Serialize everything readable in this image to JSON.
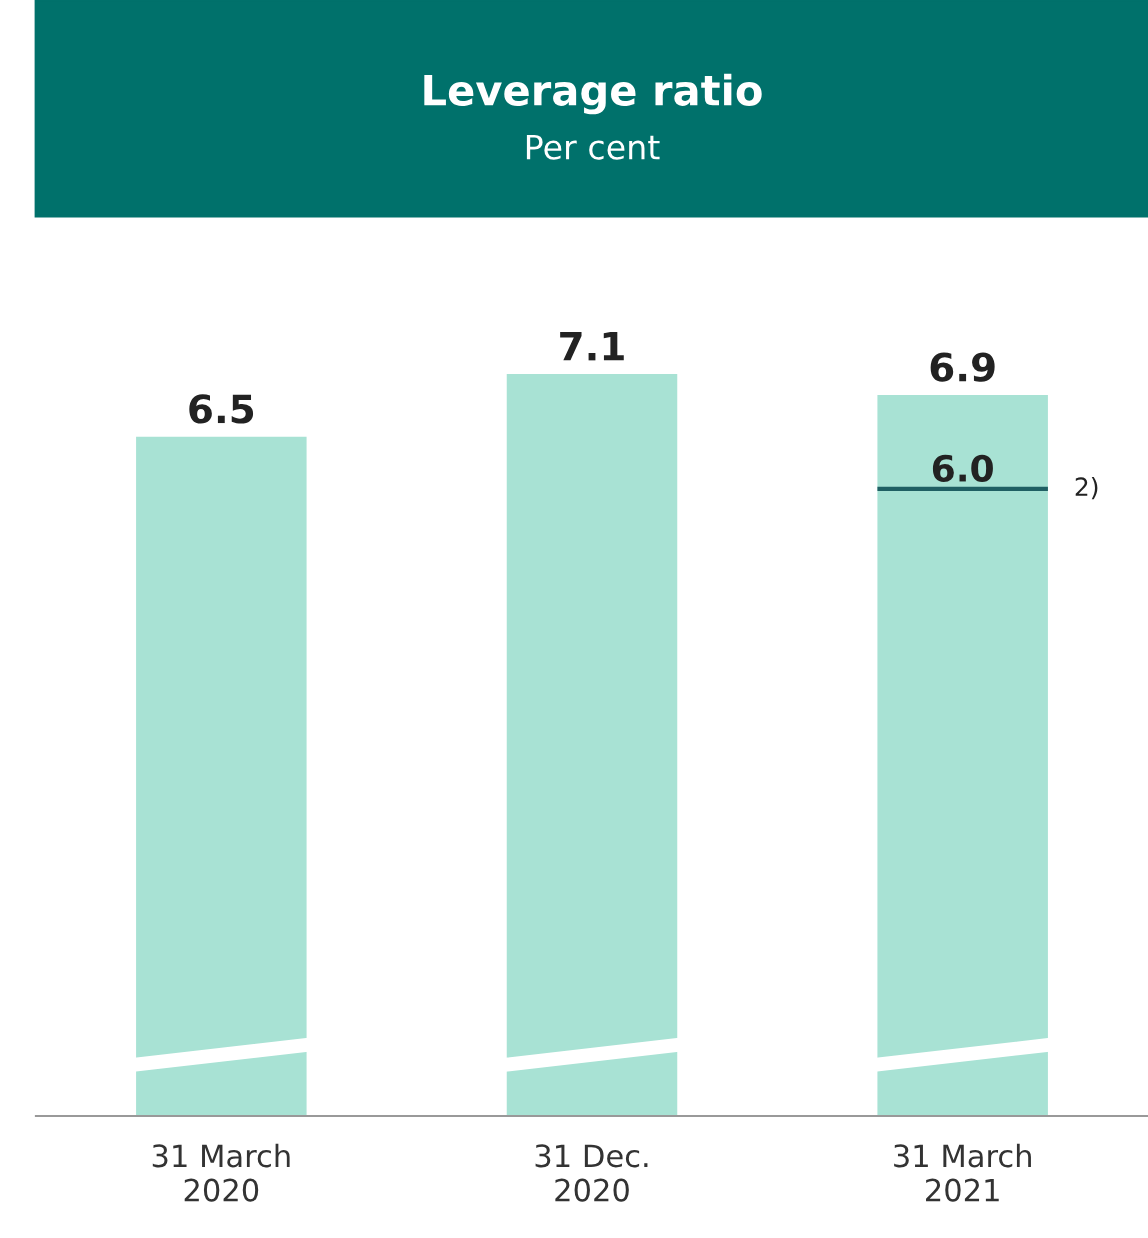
{
  "chart_data": {
    "type": "bar",
    "title": "Leverage ratio",
    "subtitle": "Per cent",
    "categories": [
      "31 March\n2020",
      "31 Dec.\n2020",
      "31 March\n2021"
    ],
    "values": [
      6.5,
      7.1,
      6.9
    ],
    "color": "#a8e2d4",
    "data_labels": true,
    "grid": false,
    "ref_lines": [
      {
        "axis": "y",
        "value": 6.0,
        "label": "6.0",
        "color": "#1f5f63",
        "line_style": "solid"
      }
    ],
    "annotations": [
      "2)"
    ]
  }
}
